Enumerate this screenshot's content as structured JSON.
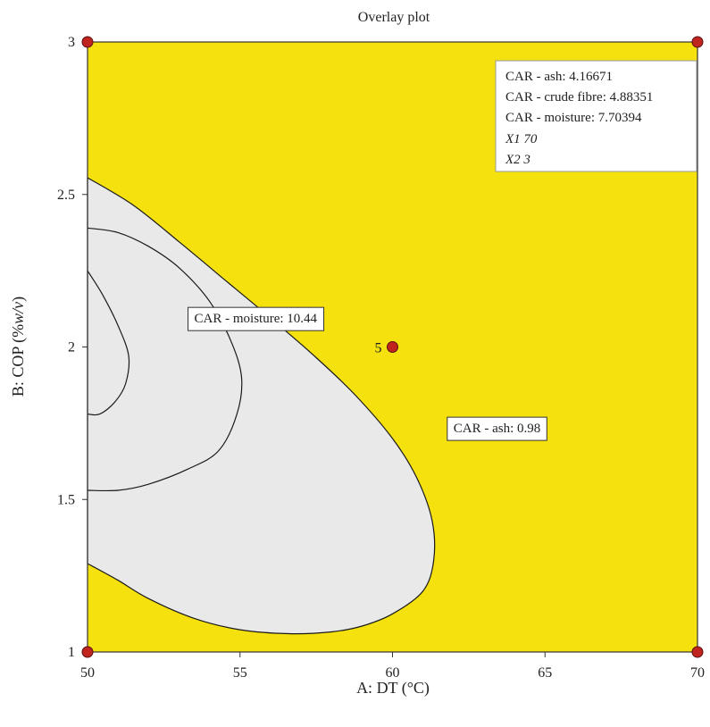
{
  "chart_data": {
    "type": "contour",
    "title": "Overlay plot",
    "xlabel": "A: DT (°C)",
    "ylabel_prefix": "B: COP (%",
    "ylabel_unit": "w/v",
    "ylabel_suffix": ")",
    "xlim": [
      50,
      70
    ],
    "ylim": [
      1,
      3
    ],
    "xticks": [
      "50",
      "55",
      "60",
      "65",
      "70"
    ],
    "yticks": [
      "1",
      "1.5",
      "2",
      "2.5",
      "3"
    ],
    "colors": {
      "feasible": "#f4e10e",
      "infeasible": "#e9e9e9",
      "point": "#c0241e",
      "contour": "#1a1a1a"
    },
    "regions": [
      {
        "name": "infeasible",
        "contour_label": "CAR - ash: 0.98",
        "boundary": [
          [
            50,
            2.555
          ],
          [
            51.5,
            2.465
          ],
          [
            53,
            2.345
          ],
          [
            54.5,
            2.22
          ],
          [
            56,
            2.095
          ],
          [
            57.5,
            1.965
          ],
          [
            58.8,
            1.84
          ],
          [
            60,
            1.7
          ],
          [
            60.8,
            1.57
          ],
          [
            61.3,
            1.43
          ],
          [
            61.35,
            1.3
          ],
          [
            61,
            1.2
          ],
          [
            60,
            1.125
          ],
          [
            59,
            1.085
          ],
          [
            58,
            1.066
          ],
          [
            56.6,
            1.06
          ],
          [
            55,
            1.073
          ],
          [
            53.5,
            1.11
          ],
          [
            52,
            1.175
          ],
          [
            51,
            1.235
          ],
          [
            50,
            1.29
          ]
        ],
        "label_pos": [
          62.0,
          1.72
        ]
      }
    ],
    "contours": [
      {
        "name": "moisture-outer",
        "label": "CAR - moisture: 10.44",
        "points": [
          [
            50,
            2.39
          ],
          [
            51,
            2.375
          ],
          [
            52,
            2.33
          ],
          [
            53,
            2.26
          ],
          [
            54,
            2.15
          ],
          [
            54.7,
            2.02
          ],
          [
            55.05,
            1.9
          ],
          [
            54.9,
            1.78
          ],
          [
            54.3,
            1.66
          ],
          [
            53.3,
            1.6
          ],
          [
            52,
            1.55
          ],
          [
            51,
            1.53
          ],
          [
            50,
            1.53
          ]
        ],
        "label_pos": [
          53.5,
          2.08
        ]
      },
      {
        "name": "moisture-inner",
        "label": "",
        "points": [
          [
            50,
            2.25
          ],
          [
            50.5,
            2.17
          ],
          [
            51.0,
            2.07
          ],
          [
            51.35,
            1.97
          ],
          [
            51.25,
            1.88
          ],
          [
            50.9,
            1.82
          ],
          [
            50.4,
            1.78
          ],
          [
            50,
            1.78
          ]
        ]
      }
    ],
    "design_points": [
      {
        "x": 50,
        "y": 3,
        "label": ""
      },
      {
        "x": 70,
        "y": 3,
        "label": ""
      },
      {
        "x": 50,
        "y": 1,
        "label": ""
      },
      {
        "x": 70,
        "y": 1,
        "label": ""
      },
      {
        "x": 60,
        "y": 2,
        "label": "5"
      }
    ],
    "info_box": [
      "CAR - ash: 4.16671",
      "CAR - crude fibre: 4.88351",
      "CAR - moisture: 7.70394",
      "X1 70",
      "X2 3"
    ]
  }
}
